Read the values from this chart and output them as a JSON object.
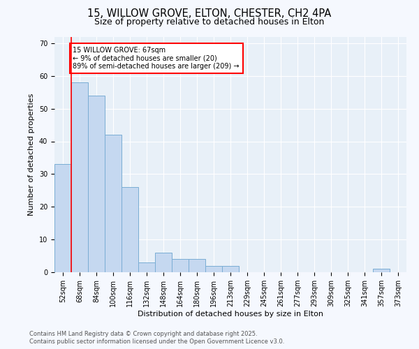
{
  "title_line1": "15, WILLOW GROVE, ELTON, CHESTER, CH2 4PA",
  "title_line2": "Size of property relative to detached houses in Elton",
  "xlabel": "Distribution of detached houses by size in Elton",
  "ylabel": "Number of detached properties",
  "bar_values": [
    33,
    58,
    54,
    42,
    26,
    3,
    6,
    4,
    4,
    2,
    2,
    0,
    0,
    0,
    0,
    0,
    0,
    0,
    0,
    1,
    0
  ],
  "categories": [
    "52sqm",
    "68sqm",
    "84sqm",
    "100sqm",
    "116sqm",
    "132sqm",
    "148sqm",
    "164sqm",
    "180sqm",
    "196sqm",
    "213sqm",
    "229sqm",
    "245sqm",
    "261sqm",
    "277sqm",
    "293sqm",
    "309sqm",
    "325sqm",
    "341sqm",
    "357sqm",
    "373sqm"
  ],
  "bar_color": "#c5d8f0",
  "bar_edge_color": "#7aadd4",
  "fig_background_color": "#f5f8fe",
  "axes_background_color": "#e8f0f8",
  "grid_color": "#ffffff",
  "annotation_line1": "15 WILLOW GROVE: 67sqm",
  "annotation_line2": "← 9% of detached houses are smaller (20)",
  "annotation_line3": "89% of semi-detached houses are larger (209) →",
  "ylim": [
    0,
    72
  ],
  "yticks": [
    0,
    10,
    20,
    30,
    40,
    50,
    60,
    70
  ],
  "footer_line1": "Contains HM Land Registry data © Crown copyright and database right 2025.",
  "footer_line2": "Contains public sector information licensed under the Open Government Licence v3.0.",
  "red_line_index": 1,
  "title1_fontsize": 10.5,
  "title2_fontsize": 9,
  "axis_label_fontsize": 8,
  "tick_fontsize": 7,
  "annot_fontsize": 7,
  "footer_fontsize": 6
}
